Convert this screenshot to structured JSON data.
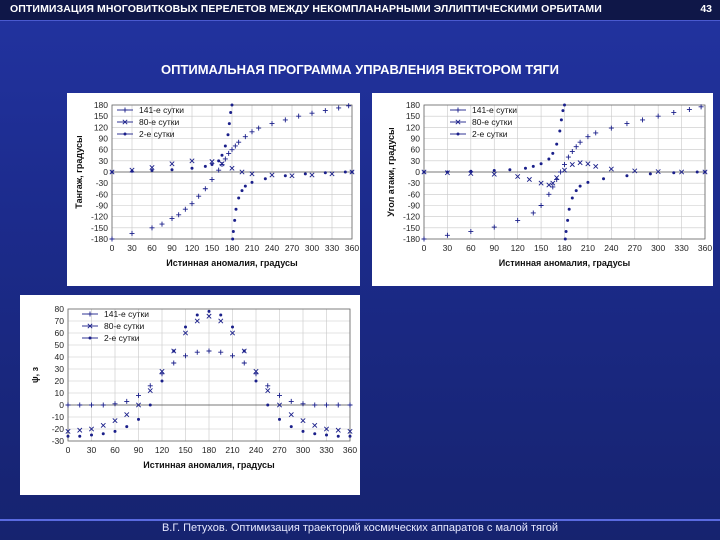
{
  "header": {
    "title": "ОПТИМИЗАЦИЯ МНОГОВИТКОВЫХ ПЕРЕЛЕТОВ МЕЖДУ НЕКОМПЛАНАРНЫМИ ЭЛЛИПТИЧЕСКИМИ ОРБИТАМИ",
    "page": "43"
  },
  "subtitle": "ОПТИМАЛЬНАЯ ПРОГРАММА УПРАВЛЕНИЯ ВЕКТОРОМ ТЯГИ",
  "footer": "В.Г. Петухов. Оптимизация траекторий космических аппаратов с малой тягой",
  "colors": {
    "series": "#1a1f8a",
    "grid": "#c8c8c8"
  },
  "chart_data": [
    {
      "type": "scatter",
      "xlabel": "Истинная аномалия, градусы",
      "ylabel": "Тангаж, градусы",
      "xlim": [
        0,
        360
      ],
      "ylim": [
        -180,
        180
      ],
      "xticks": [
        "0",
        "30",
        "60",
        "90",
        "120",
        "150",
        "180",
        "210",
        "240",
        "270",
        "300",
        "330",
        "360"
      ],
      "yticks": [
        "180",
        "150",
        "120",
        "90",
        "60",
        "30",
        "0",
        "-30",
        "-60",
        "-90",
        "-120",
        "-150",
        "-180"
      ],
      "legend_position": "top-left",
      "grid": true,
      "series": [
        {
          "name": "141-е сутки",
          "marker": "plus",
          "x": [
            0,
            30,
            60,
            75,
            90,
            100,
            110,
            120,
            130,
            140,
            150,
            160,
            165,
            170,
            175,
            180,
            185,
            190,
            200,
            210,
            220,
            240,
            260,
            280,
            300,
            320,
            340,
            355
          ],
          "y": [
            -180,
            -165,
            -150,
            -140,
            -125,
            -115,
            -100,
            -85,
            -65,
            -45,
            -20,
            5,
            20,
            35,
            50,
            60,
            70,
            80,
            95,
            108,
            118,
            130,
            140,
            150,
            158,
            165,
            172,
            178
          ]
        },
        {
          "name": "80-е сутки",
          "marker": "x",
          "x": [
            0,
            30,
            60,
            90,
            120,
            150,
            165,
            180,
            195,
            210,
            240,
            270,
            300,
            330,
            360
          ],
          "y": [
            0,
            5,
            12,
            22,
            30,
            28,
            22,
            10,
            0,
            -5,
            -8,
            -10,
            -8,
            -5,
            0
          ]
        },
        {
          "name": "2-е сутки",
          "marker": "dot",
          "x": [
            0,
            30,
            60,
            90,
            120,
            140,
            150,
            160,
            165,
            170,
            174,
            176,
            178,
            180,
            181,
            182,
            184,
            186,
            190,
            195,
            200,
            210,
            230,
            260,
            290,
            320,
            350,
            360
          ],
          "y": [
            0,
            2,
            4,
            6,
            10,
            15,
            20,
            30,
            45,
            70,
            100,
            130,
            160,
            180,
            -180,
            -160,
            -130,
            -100,
            -70,
            -50,
            -38,
            -28,
            -18,
            -10,
            -5,
            -2,
            0,
            0
          ]
        }
      ]
    },
    {
      "type": "scatter",
      "xlabel": "Истинная аномалия, градусы",
      "ylabel": "Угол атаки, градусы",
      "xlim": [
        0,
        360
      ],
      "ylim": [
        -180,
        180
      ],
      "xticks": [
        "0",
        "30",
        "60",
        "90",
        "120",
        "150",
        "180",
        "210",
        "240",
        "270",
        "300",
        "330",
        "360"
      ],
      "yticks": [
        "180",
        "150",
        "120",
        "90",
        "60",
        "30",
        "0",
        "-30",
        "-60",
        "-90",
        "-120",
        "-150",
        "-180"
      ],
      "legend_position": "top-right",
      "grid": true,
      "series": [
        {
          "name": "141-е сутки",
          "marker": "plus",
          "x": [
            0,
            30,
            60,
            90,
            120,
            140,
            150,
            160,
            165,
            170,
            175,
            180,
            185,
            190,
            195,
            200,
            210,
            220,
            240,
            260,
            280,
            300,
            320,
            340,
            355
          ],
          "y": [
            -180,
            -170,
            -160,
            -148,
            -130,
            -110,
            -90,
            -60,
            -40,
            -20,
            0,
            20,
            40,
            55,
            68,
            80,
            95,
            105,
            118,
            130,
            140,
            150,
            160,
            168,
            175
          ]
        },
        {
          "name": "80-е сутки",
          "marker": "x",
          "x": [
            0,
            30,
            60,
            90,
            120,
            135,
            150,
            160,
            165,
            170,
            180,
            190,
            200,
            210,
            220,
            240,
            270,
            300,
            330,
            360
          ],
          "y": [
            0,
            -2,
            -4,
            -6,
            -12,
            -20,
            -30,
            -35,
            -30,
            -15,
            5,
            20,
            25,
            22,
            15,
            8,
            3,
            1,
            0,
            0
          ]
        },
        {
          "name": "2-е сутки",
          "marker": "dot",
          "x": [
            0,
            30,
            60,
            90,
            110,
            130,
            140,
            150,
            160,
            165,
            170,
            174,
            176,
            178,
            180,
            181,
            182,
            184,
            186,
            190,
            195,
            200,
            210,
            230,
            260,
            290,
            320,
            350,
            360
          ],
          "y": [
            0,
            0,
            2,
            4,
            6,
            10,
            15,
            22,
            35,
            50,
            75,
            110,
            140,
            165,
            180,
            -180,
            -160,
            -130,
            -100,
            -70,
            -50,
            -38,
            -28,
            -18,
            -10,
            -5,
            -2,
            0,
            0
          ]
        }
      ]
    },
    {
      "type": "scatter",
      "xlabel": "Истинная аномалия, градусы",
      "ylabel": "ψ, з",
      "xlim": [
        0,
        360
      ],
      "ylim": [
        -30,
        80
      ],
      "xticks": [
        "0",
        "30",
        "60",
        "90",
        "120",
        "150",
        "180",
        "210",
        "240",
        "270",
        "300",
        "330",
        "360"
      ],
      "yticks": [
        "80",
        "70",
        "60",
        "50",
        "40",
        "30",
        "20",
        "10",
        "0",
        "-10",
        "-20",
        "-30"
      ],
      "legend_position": "top-left",
      "grid": true,
      "series": [
        {
          "name": "141-е сутки",
          "marker": "plus",
          "x": [
            0,
            15,
            30,
            45,
            60,
            75,
            90,
            105,
            120,
            135,
            150,
            165,
            180,
            195,
            210,
            225,
            240,
            255,
            270,
            285,
            300,
            315,
            330,
            345,
            360
          ],
          "y": [
            0,
            0,
            0,
            0,
            1,
            3,
            8,
            16,
            26,
            35,
            41,
            44,
            45,
            44,
            41,
            35,
            26,
            16,
            8,
            3,
            1,
            0,
            0,
            0,
            0
          ]
        },
        {
          "name": "80-е сутки",
          "marker": "x",
          "x": [
            0,
            15,
            30,
            45,
            60,
            75,
            90,
            105,
            120,
            135,
            150,
            165,
            180,
            195,
            210,
            225,
            240,
            255,
            270,
            285,
            300,
            315,
            330,
            345,
            360
          ],
          "y": [
            -22,
            -21,
            -20,
            -17,
            -13,
            -8,
            0,
            12,
            28,
            45,
            60,
            70,
            74,
            70,
            60,
            45,
            28,
            12,
            0,
            -8,
            -13,
            -17,
            -20,
            -21,
            -22
          ]
        },
        {
          "name": "2-е сутки",
          "marker": "dot",
          "x": [
            0,
            15,
            30,
            45,
            60,
            75,
            90,
            105,
            120,
            135,
            150,
            165,
            180,
            195,
            210,
            225,
            240,
            255,
            270,
            285,
            300,
            315,
            330,
            345,
            360
          ],
          "y": [
            -26,
            -26,
            -25,
            -24,
            -22,
            -18,
            -12,
            0,
            20,
            45,
            65,
            75,
            78,
            75,
            65,
            45,
            20,
            0,
            -12,
            -18,
            -22,
            -24,
            -25,
            -26,
            -26
          ]
        }
      ]
    }
  ]
}
